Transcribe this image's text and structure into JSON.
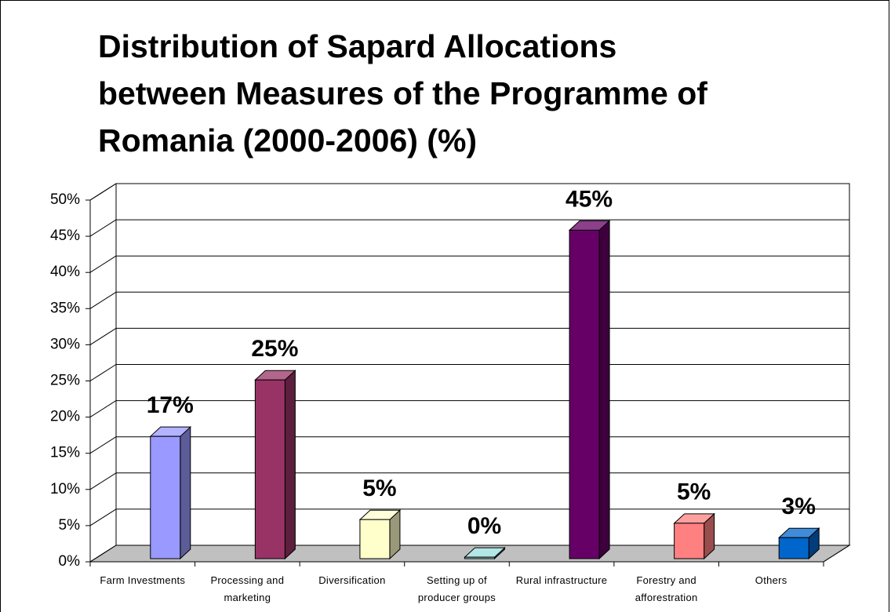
{
  "chart_data": {
    "type": "bar3d",
    "title": [
      "Distribution of Sapard Allocations",
      "between Measures of the Programme of",
      "Romania (2000-2006) (%)"
    ],
    "categories": [
      "Farm Investments",
      "Processing and marketing",
      "Diversification",
      "Setting up of producer groups",
      "Rural infrastructure",
      "Forestry and afforestration",
      "Others"
    ],
    "values": [
      16.9,
      24.7,
      5.4,
      0.2,
      45.4,
      4.9,
      2.9
    ],
    "value_labels": [
      "17%",
      "25%",
      "5%",
      "0%",
      "45%",
      "5%",
      "3%"
    ],
    "colors": [
      "#9999ff",
      "#993366",
      "#ffffcc",
      "#99dddd",
      "#660066",
      "#ff8080",
      "#0066cc"
    ],
    "ylim": [
      0,
      50
    ],
    "yticks": [
      {
        "value": 0,
        "label": "0%"
      },
      {
        "value": 5,
        "label": "5%"
      },
      {
        "value": 10,
        "label": "10%"
      },
      {
        "value": 15,
        "label": "15%"
      },
      {
        "value": 20,
        "label": "20%"
      },
      {
        "value": 25,
        "label": "25%"
      },
      {
        "value": 30,
        "label": "30%"
      },
      {
        "value": 35,
        "label": "35%"
      },
      {
        "value": 40,
        "label": "40%"
      },
      {
        "value": 45,
        "label": "45%"
      },
      {
        "value": 50,
        "label": "50%"
      }
    ],
    "grid": true
  }
}
